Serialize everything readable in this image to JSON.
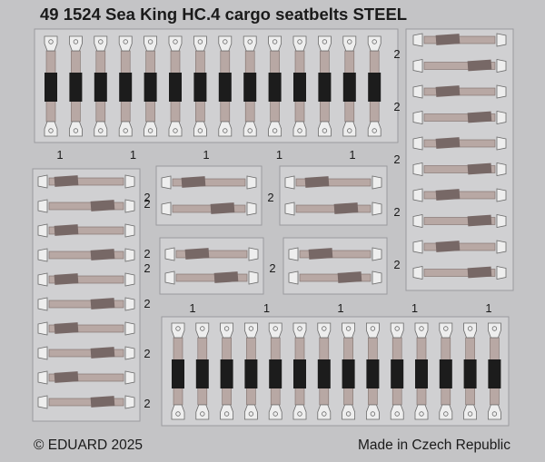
{
  "sheet": {
    "title": "49 1524 Sea King HC.4 cargo seatbelts STEEL",
    "copyright": "© EDUARD 2025",
    "origin": "Made in Czech Republic"
  },
  "colors": {
    "fret": "#c4c4c6",
    "frame_edge": "#9a9a9e",
    "strap": "#b8a8a4",
    "strap_edge": "#7e6e6a",
    "metal": "#eeeeee",
    "metal_edge": "#6a6a6a",
    "buckle": "#1c1c1c",
    "pad": "#776866"
  },
  "part_numbers": {
    "top_left_row": [
      "1",
      "1",
      "1",
      "1",
      "1"
    ],
    "bottom_right_row": [
      "1",
      "1",
      "1",
      "1",
      "1"
    ],
    "right_column": [
      "2",
      "2",
      "2",
      "2",
      "2"
    ],
    "left_column": [
      "2",
      "2",
      "2",
      "2",
      "2"
    ],
    "small_frames": [
      "2",
      "2",
      "2",
      "2"
    ]
  }
}
